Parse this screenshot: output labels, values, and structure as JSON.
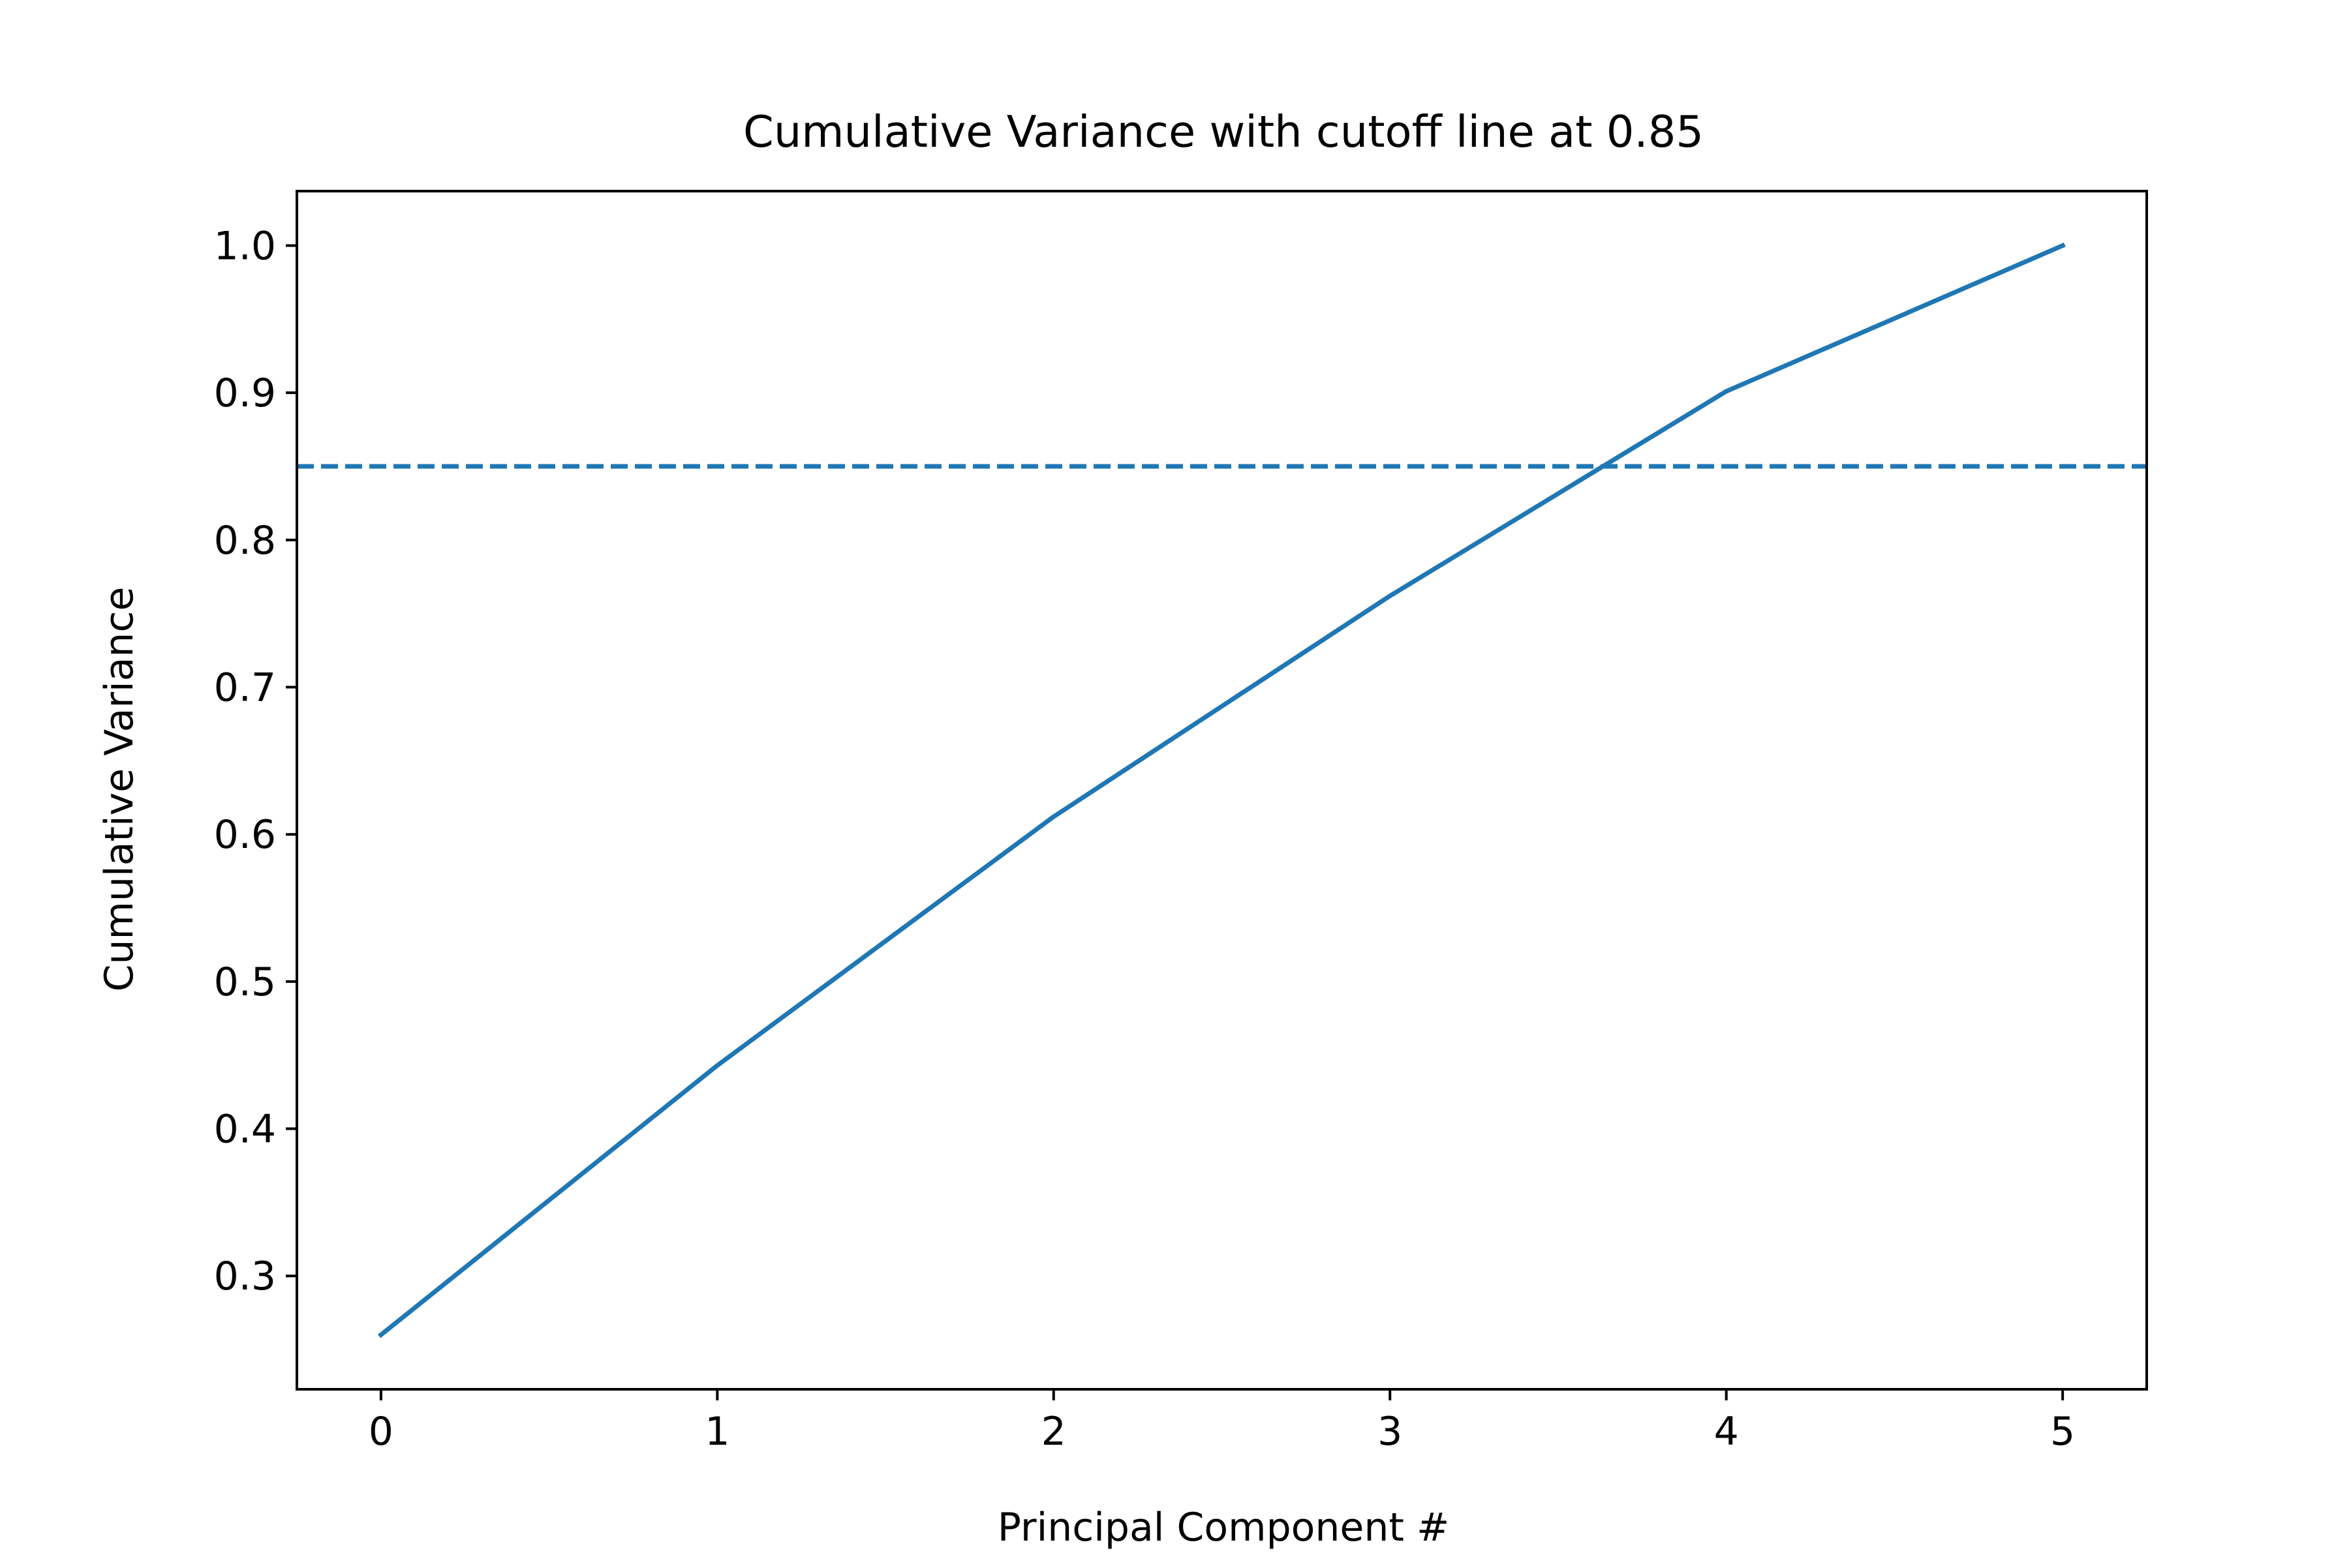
{
  "chart_data": {
    "type": "line",
    "title": "Cumulative Variance with cutoff line at 0.85",
    "xlabel": "Principal Component #",
    "ylabel": "Cumulative Variance",
    "x": [
      0,
      1,
      2,
      3,
      4,
      5
    ],
    "series": [
      {
        "values": [
          0.26,
          0.443,
          0.612,
          0.762,
          0.901,
          1.0
        ],
        "color": "#1f77b4",
        "style": "solid"
      }
    ],
    "reference_lines": [
      {
        "orientation": "horizontal",
        "y": 0.85,
        "color": "#1f77b4",
        "style": "dashed"
      }
    ],
    "xlim": [
      -0.25,
      5.25
    ],
    "ylim": [
      0.223,
      1.037
    ],
    "xticks": [
      "0",
      "1",
      "2",
      "3",
      "4",
      "5"
    ],
    "yticks": [
      "0.3",
      "0.4",
      "0.5",
      "0.6",
      "0.7",
      "0.8",
      "0.9",
      "1.0"
    ],
    "grid": false,
    "legend": "none"
  }
}
